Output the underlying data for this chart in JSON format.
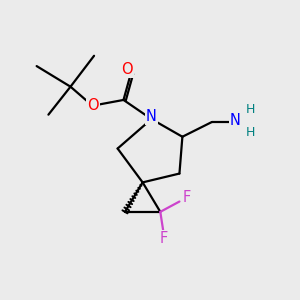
{
  "bg_color": "#ebebeb",
  "atom_colors": {
    "O": "#ff0000",
    "N": "#0000ff",
    "F": "#cc44cc",
    "NH2_H": "#008080",
    "C": "#000000"
  },
  "lw": 1.6
}
